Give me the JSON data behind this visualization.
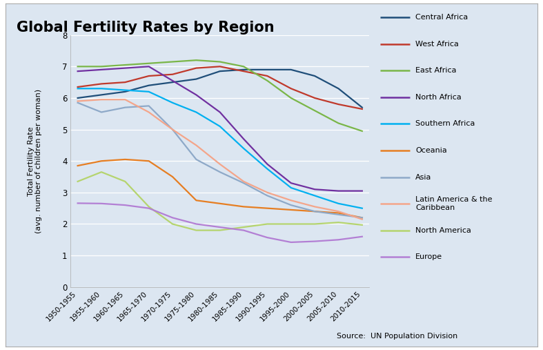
{
  "title": "Global Fertility Rates by Region",
  "ylabel_line1": "Total Fertility Rate",
  "ylabel_line2": "(avg. number of children per woman)",
  "source": "Source:  UN Population Division",
  "fig_bg_color": "#dce6f1",
  "plot_bg_color": "#dce6f1",
  "outer_bg_color": "#ffffff",
  "ylim": [
    0,
    8
  ],
  "yticks": [
    0,
    1,
    2,
    3,
    4,
    5,
    6,
    7,
    8
  ],
  "x_labels": [
    "1950-1955",
    "1955-1960",
    "1960-1965",
    "1965-1970",
    "1970-1975",
    "1975-1980",
    "1980-1985",
    "1985-1990",
    "1990-1995",
    "1995-2000",
    "2000-2005",
    "2005-2010",
    "2010-2015"
  ],
  "series": [
    {
      "name": "Central Africa",
      "color": "#1f4e79",
      "values": [
        6.0,
        6.1,
        6.2,
        6.4,
        6.5,
        6.6,
        6.85,
        6.9,
        6.9,
        6.9,
        6.7,
        6.3,
        5.7
      ]
    },
    {
      "name": "West Africa",
      "color": "#c0392b",
      "values": [
        6.35,
        6.45,
        6.5,
        6.7,
        6.75,
        6.95,
        7.0,
        6.85,
        6.7,
        6.3,
        6.0,
        5.8,
        5.65
      ]
    },
    {
      "name": "East Africa",
      "color": "#7ab648",
      "values": [
        7.0,
        7.0,
        7.05,
        7.1,
        7.15,
        7.2,
        7.15,
        7.0,
        6.55,
        6.0,
        5.6,
        5.2,
        4.95
      ]
    },
    {
      "name": "North Africa",
      "color": "#7030a0",
      "values": [
        6.85,
        6.9,
        6.95,
        7.0,
        6.55,
        6.1,
        5.55,
        4.7,
        3.9,
        3.3,
        3.1,
        3.05,
        3.05
      ]
    },
    {
      "name": "Southern Africa",
      "color": "#00b0f0",
      "values": [
        6.3,
        6.3,
        6.25,
        6.2,
        5.85,
        5.55,
        5.1,
        4.4,
        3.75,
        3.15,
        2.9,
        2.65,
        2.5
      ]
    },
    {
      "name": "Oceania",
      "color": "#e67e22",
      "values": [
        3.85,
        4.0,
        4.05,
        4.0,
        3.5,
        2.75,
        2.65,
        2.55,
        2.5,
        2.45,
        2.4,
        2.35,
        2.2
      ]
    },
    {
      "name": "Asia",
      "color": "#8ea9c8",
      "values": [
        5.85,
        5.55,
        5.7,
        5.75,
        5.0,
        4.05,
        3.65,
        3.3,
        2.9,
        2.6,
        2.4,
        2.3,
        2.2
      ]
    },
    {
      "name": "Latin America & the\nCaribbean",
      "color": "#f4a58a",
      "values": [
        5.9,
        5.95,
        5.95,
        5.55,
        5.0,
        4.5,
        3.9,
        3.35,
        3.0,
        2.75,
        2.55,
        2.4,
        2.15
      ]
    },
    {
      "name": "North America",
      "color": "#b5d46e",
      "values": [
        3.35,
        3.65,
        3.35,
        2.55,
        2.0,
        1.8,
        1.8,
        1.9,
        2.0,
        2.0,
        2.0,
        2.05,
        1.97
      ]
    },
    {
      "name": "Europe",
      "color": "#b37fd4",
      "values": [
        2.66,
        2.65,
        2.6,
        2.5,
        2.2,
        2.0,
        1.9,
        1.8,
        1.57,
        1.42,
        1.45,
        1.5,
        1.6
      ]
    }
  ]
}
